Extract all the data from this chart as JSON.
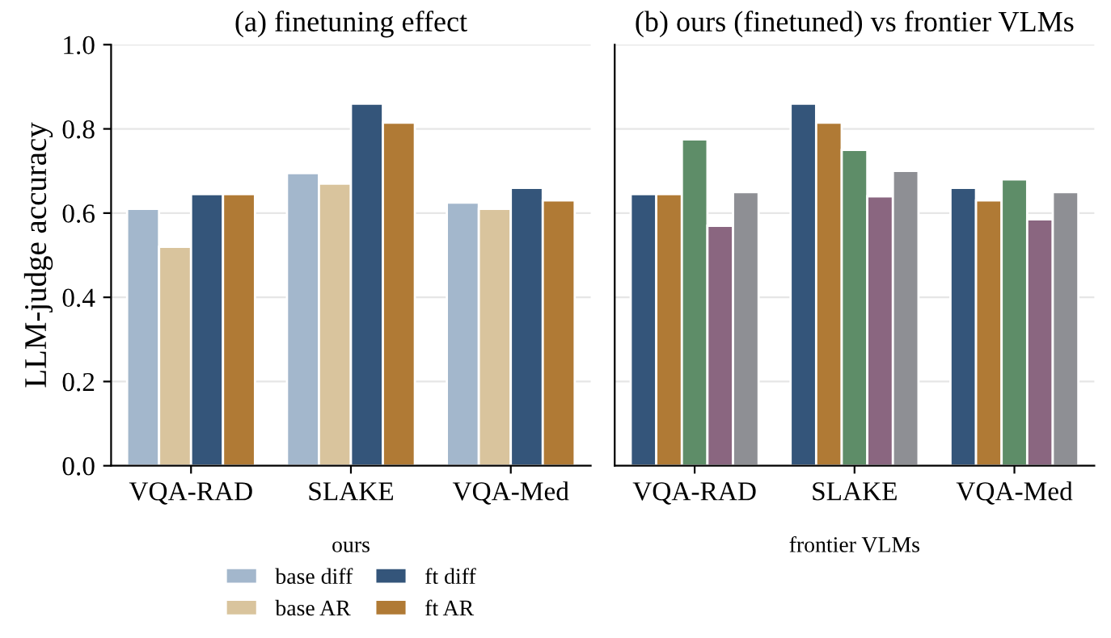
{
  "chart_data": [
    {
      "type": "bar",
      "title": "(a) finetuning effect",
      "ylabel": "LLM-judge accuracy",
      "categories": [
        "VQA-RAD",
        "SLAKE",
        "VQA-Med"
      ],
      "ylim": [
        0,
        1.0
      ],
      "yticks": [
        {
          "value": 0,
          "label": "0.0"
        },
        0.2,
        0.4,
        0.6,
        0.8,
        {
          "value": 1.0,
          "label": "1.0"
        }
      ],
      "grid": "y",
      "legend": "bottom",
      "legend_title": "ours",
      "series": [
        {
          "name": "base diff",
          "color": "#a3b7cc",
          "values": [
            0.61,
            0.695,
            0.625
          ]
        },
        {
          "name": "base AR",
          "color": "#d9c49d",
          "values": [
            0.52,
            0.67,
            0.61
          ]
        },
        {
          "name": "ft diff",
          "color": "#34557a",
          "values": [
            0.645,
            0.86,
            0.66
          ]
        },
        {
          "name": "ft AR",
          "color": "#b07a35",
          "values": [
            0.645,
            0.815,
            0.63
          ]
        }
      ]
    },
    {
      "type": "bar",
      "title": "(b) ours (finetuned) vs frontier VLMs",
      "categories": [
        "VQA-RAD",
        "SLAKE",
        "VQA-Med"
      ],
      "ylim": [
        0,
        1.0
      ],
      "yticks": [
        0,
        0.2,
        0.4,
        0.6,
        0.8,
        1.0
      ],
      "tick_labels": "x",
      "grid": "y",
      "legend": "bottom",
      "legend_title": "frontier VLMs",
      "series": [
        {
          "color": "#34557a",
          "values": [
            0.645,
            0.86,
            0.66
          ]
        },
        {
          "color": "#b07a35",
          "values": [
            0.645,
            0.815,
            0.63
          ]
        },
        {
          "color": "#5e8d68",
          "values": [
            0.775,
            0.75,
            0.68
          ]
        },
        {
          "color": "#8a6680",
          "values": [
            0.57,
            0.64,
            0.585
          ]
        },
        {
          "color": "#8e8f94",
          "values": [
            0.65,
            0.7,
            0.65
          ]
        }
      ]
    }
  ]
}
